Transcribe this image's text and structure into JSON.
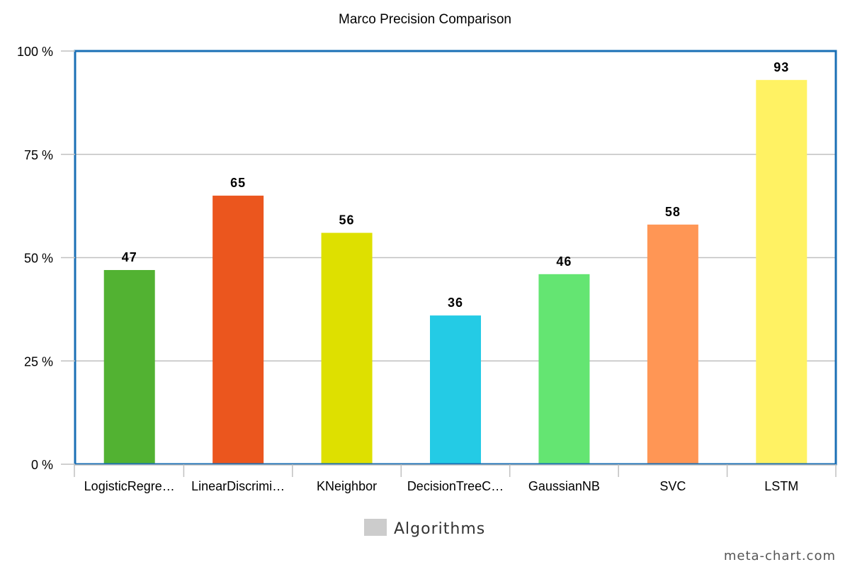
{
  "chart_data": {
    "type": "bar",
    "title": "Marco Precision Comparison",
    "categories": [
      "LogisticRegre…",
      "LinearDiscrimi…",
      "KNeighbor",
      "DecisionTreeC…",
      "GaussianNB",
      "SVC",
      "LSTM"
    ],
    "values": [
      47,
      65,
      56,
      36,
      46,
      58,
      93
    ],
    "colors": [
      "#52b232",
      "#eb561e",
      "#dee000",
      "#24cbe5",
      "#64e572",
      "#ff9655",
      "#fff263"
    ],
    "ylim": [
      0,
      100
    ],
    "yticks": [
      0,
      25,
      50,
      75,
      100
    ],
    "ytick_labels": [
      "0 %",
      "25 %",
      "50 %",
      "75 %",
      "100 %"
    ],
    "xlabel": "",
    "ylabel": "",
    "grid": true,
    "legend": {
      "label": "Algorithms",
      "placement": "bottom-center",
      "swatch_color": "#cccccc"
    },
    "plot_border_color": "#1a6fb5",
    "grid_color": "#c0c0c0"
  },
  "watermark": "meta-chart.com"
}
